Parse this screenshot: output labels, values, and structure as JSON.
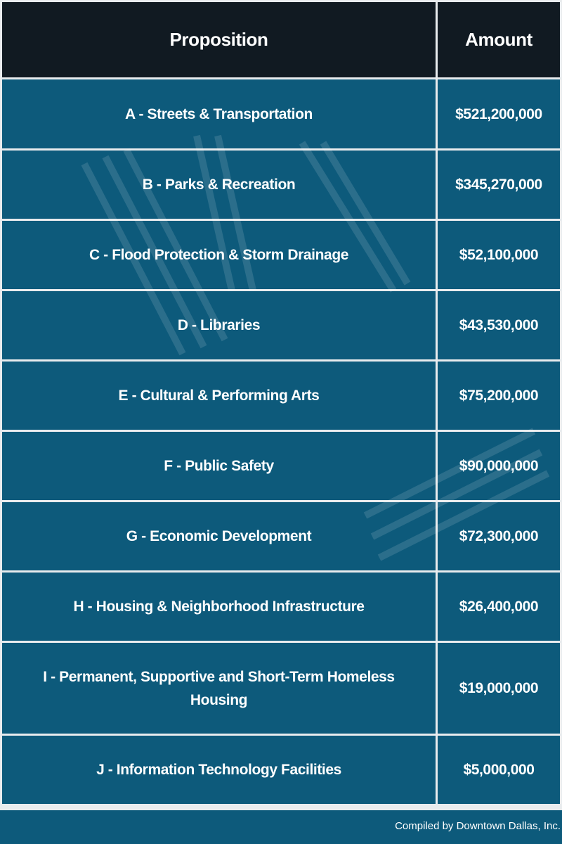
{
  "table": {
    "headers": [
      "Proposition",
      "Amount"
    ],
    "rows": [
      {
        "proposition": "A - Streets & Transportation",
        "amount": "$521,200,000"
      },
      {
        "proposition": "B - Parks & Recreation",
        "amount": "$345,270,000"
      },
      {
        "proposition": "C - Flood Protection & Storm Drainage",
        "amount": "$52,100,000"
      },
      {
        "proposition": "D - Libraries",
        "amount": "$43,530,000"
      },
      {
        "proposition": "E - Cultural & Performing Arts",
        "amount": "$75,200,000"
      },
      {
        "proposition": "F - Public Safety",
        "amount": "$90,000,000"
      },
      {
        "proposition": "G - Economic Development",
        "amount": "$72,300,000"
      },
      {
        "proposition": "H - Housing & Neighborhood Infrastructure",
        "amount": "$26,400,000"
      },
      {
        "proposition": "I - Permanent, Supportive and Short-Term Homeless Housing",
        "amount": "$19,000,000"
      },
      {
        "proposition": "J - Information Technology Facilities",
        "amount": "$5,000,000"
      }
    ]
  },
  "footer": {
    "credit": "Compiled by Downtown Dallas, Inc."
  },
  "colors": {
    "header_bg": "#111a22",
    "row_bg": "#0d5a7b",
    "grid_lines": "#e9ecee",
    "text": "#ffffff"
  }
}
